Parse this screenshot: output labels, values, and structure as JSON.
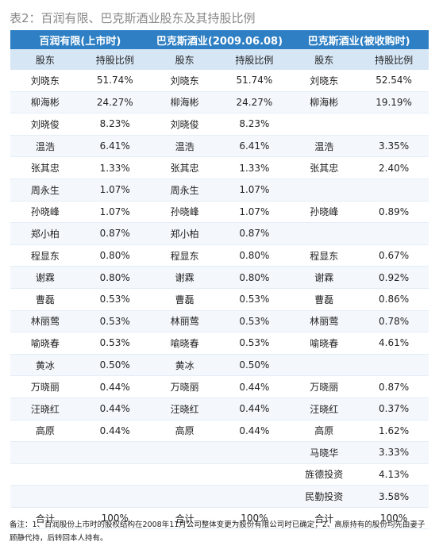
{
  "title": "表2：百润有限、巴克斯酒业股东及其持股比例",
  "table": {
    "groups": [
      "百润有限(上市时)",
      "巴克斯酒业(2009.06.08)",
      "巴克斯酒业(被收购时)"
    ],
    "columns": [
      "股东",
      "持股比例",
      "股东",
      "持股比例",
      "股东",
      "持股比例"
    ],
    "rows": [
      [
        "刘晓东",
        "51.74%",
        "刘晓东",
        "51.74%",
        "刘晓东",
        "52.54%"
      ],
      [
        "柳海彬",
        "24.27%",
        "柳海彬",
        "24.27%",
        "柳海彬",
        "19.19%"
      ],
      [
        "刘晓俊",
        "8.23%",
        "刘晓俊",
        "8.23%",
        null,
        null
      ],
      [
        "温浩",
        "6.41%",
        "温浩",
        "6.41%",
        "温浩",
        "3.35%"
      ],
      [
        "张其忠",
        "1.33%",
        "张其忠",
        "1.33%",
        "张其忠",
        "2.40%"
      ],
      [
        "周永生",
        "1.07%",
        "周永生",
        "1.07%",
        null,
        null
      ],
      [
        "孙晓峰",
        "1.07%",
        "孙晓峰",
        "1.07%",
        "孙晓峰",
        "0.89%"
      ],
      [
        "郑小柏",
        "0.87%",
        "郑小柏",
        "0.87%",
        null,
        null
      ],
      [
        "程显东",
        "0.80%",
        "程显东",
        "0.80%",
        "程显东",
        "0.67%"
      ],
      [
        "谢霖",
        "0.80%",
        "谢霖",
        "0.80%",
        "谢霖",
        "0.92%"
      ],
      [
        "曹磊",
        "0.53%",
        "曹磊",
        "0.53%",
        "曹磊",
        "0.86%"
      ],
      [
        "林丽莺",
        "0.53%",
        "林丽莺",
        "0.53%",
        "林丽莺",
        "0.78%"
      ],
      [
        "喻晓春",
        "0.53%",
        "喻晓春",
        "0.53%",
        "喻晓春",
        "4.61%"
      ],
      [
        "黄冰",
        "0.50%",
        "黄冰",
        "0.50%",
        null,
        null
      ],
      [
        "万晓丽",
        "0.44%",
        "万晓丽",
        "0.44%",
        "万晓丽",
        "0.87%"
      ],
      [
        "汪晓红",
        "0.44%",
        "汪晓红",
        "0.44%",
        "汪晓红",
        "0.37%"
      ],
      [
        "高原",
        "0.44%",
        "高原",
        "0.44%",
        "高原",
        "1.62%"
      ],
      [
        null,
        null,
        null,
        null,
        "马晓华",
        "3.33%"
      ],
      [
        null,
        null,
        null,
        null,
        "旌德投资",
        "4.13%"
      ],
      [
        null,
        null,
        null,
        null,
        "民勤投资",
        "3.58%"
      ],
      [
        "合计",
        "100%",
        "合计",
        "100%",
        "合计",
        "100%"
      ]
    ]
  },
  "note": "备注：1、百润股份上市时的股权结构在2008年11月公司整体变更为股份有限公司时已确定；2、高原持有的股份均先由妻子顾静代持，后转回本人持有。"
}
